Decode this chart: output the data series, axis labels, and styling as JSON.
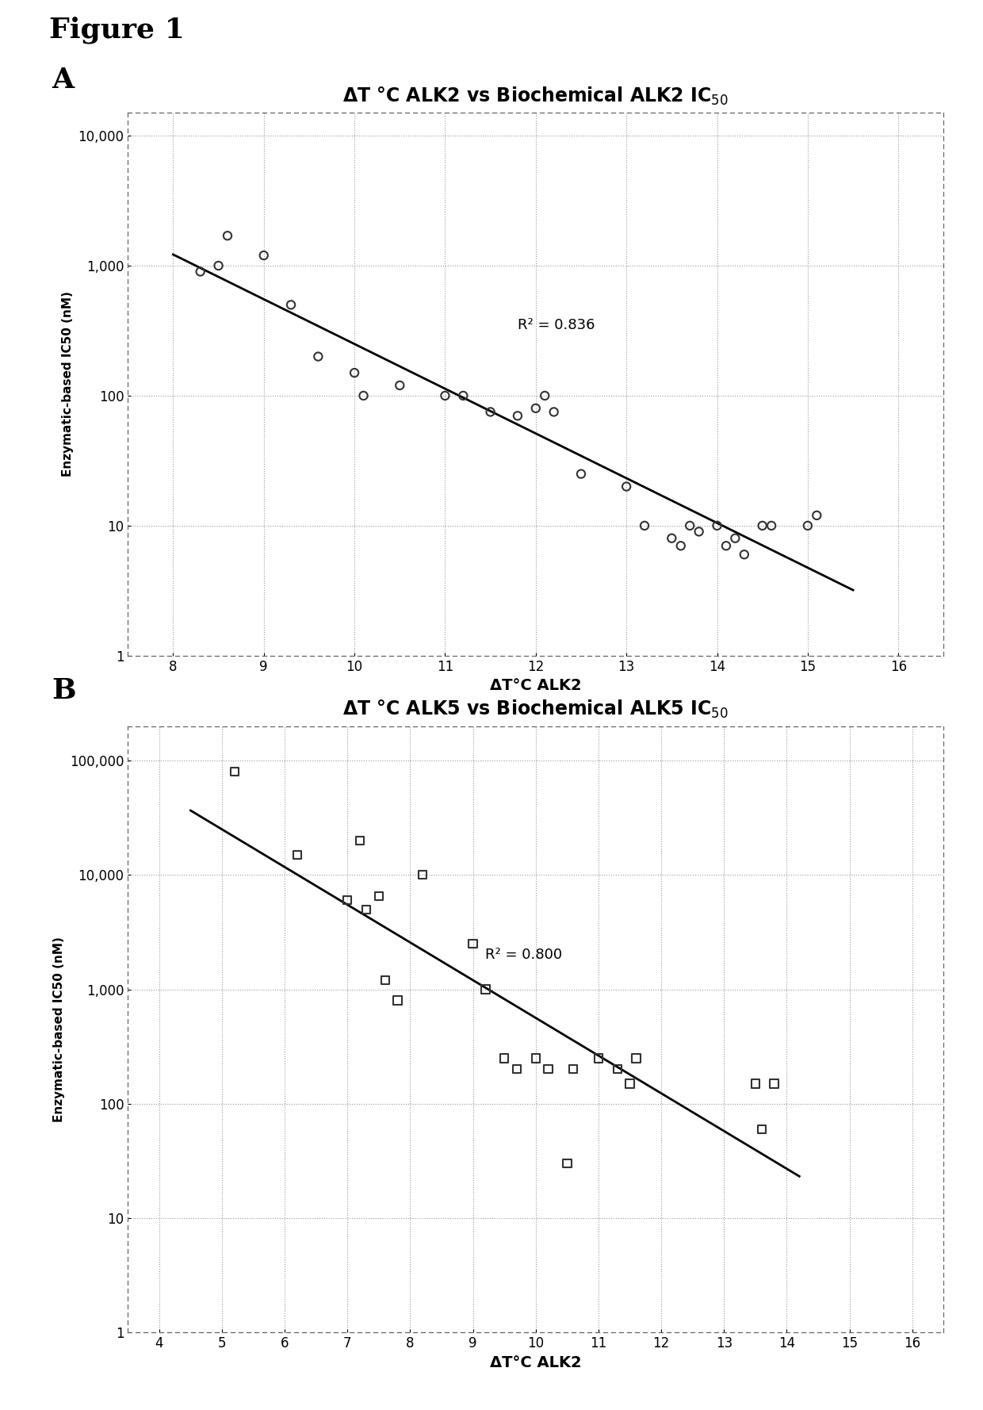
{
  "figure_title": "Figure 1",
  "panel_A": {
    "title": "ΔT °C ALK2 vs Biochemical ALK2 IC$_{50}$",
    "xlabel": "ΔT°C ALK2",
    "ylabel": "Enzymatic-based IC50 (nM)",
    "r2_label": "R² = 0.836",
    "r2_x": 11.8,
    "r2_y": 350,
    "xlim": [
      7.5,
      16.5
    ],
    "ylim_log": [
      1,
      15000
    ],
    "xticks": [
      8,
      9,
      10,
      11,
      12,
      13,
      14,
      15,
      16
    ],
    "yticks": [
      1,
      10,
      100,
      1000,
      10000
    ],
    "ytick_labels": [
      "1",
      "10",
      "100",
      "1,000",
      "10,000"
    ],
    "data_x": [
      8.3,
      8.5,
      8.6,
      9.0,
      9.3,
      9.6,
      10.0,
      10.1,
      10.5,
      11.0,
      11.2,
      11.5,
      11.8,
      12.0,
      12.1,
      12.2,
      12.5,
      13.0,
      13.2,
      13.5,
      13.6,
      13.7,
      13.8,
      14.0,
      14.1,
      14.2,
      14.3,
      14.5,
      14.6,
      15.0,
      15.1
    ],
    "data_y": [
      900,
      1000,
      1700,
      1200,
      500,
      200,
      150,
      100,
      120,
      100,
      100,
      75,
      70,
      80,
      100,
      75,
      25,
      20,
      10,
      8,
      7,
      10,
      9,
      10,
      7,
      8,
      6,
      10,
      10,
      10,
      12
    ],
    "line_x_start": 8.0,
    "line_x_end": 15.5,
    "marker": "o",
    "marker_size": 55,
    "marker_facecolor": "none",
    "marker_edgecolor": "#333333",
    "marker_linewidth": 1.5,
    "line_color": "black",
    "line_width": 2.0
  },
  "panel_B": {
    "title": "ΔT °C ALK5 vs Biochemical ALK5 IC$_{50}$",
    "xlabel": "ΔT°C ALK2",
    "ylabel": "Enzymatic-based IC50 (nM)",
    "r2_label": "R² = 0.800",
    "r2_x": 9.2,
    "r2_y": 2000,
    "xlim": [
      3.5,
      16.5
    ],
    "ylim_log": [
      1,
      200000
    ],
    "xticks": [
      4,
      5,
      6,
      7,
      8,
      9,
      10,
      11,
      12,
      13,
      14,
      15,
      16
    ],
    "yticks": [
      1,
      10,
      100,
      1000,
      10000,
      100000
    ],
    "ytick_labels": [
      "1",
      "10",
      "100",
      "1,000",
      "10,000",
      "100,000"
    ],
    "data_x": [
      5.2,
      6.2,
      7.0,
      7.2,
      7.3,
      7.5,
      7.6,
      7.8,
      8.2,
      9.0,
      9.2,
      9.5,
      9.7,
      10.0,
      10.2,
      10.5,
      10.6,
      11.0,
      11.3,
      11.5,
      11.6,
      13.5,
      13.6,
      13.8
    ],
    "data_y": [
      80000,
      15000,
      6000,
      20000,
      5000,
      6500,
      1200,
      800,
      10000,
      2500,
      1000,
      250,
      200,
      250,
      200,
      30,
      200,
      250,
      200,
      150,
      250,
      150,
      60,
      150
    ],
    "line_x_start": 4.5,
    "line_x_end": 14.2,
    "line_color": "black",
    "line_width": 2.0,
    "marker": "s",
    "marker_size": 55,
    "marker_facecolor": "none",
    "marker_edgecolor": "#333333",
    "marker_linewidth": 1.5
  },
  "background_color": "#ffffff"
}
